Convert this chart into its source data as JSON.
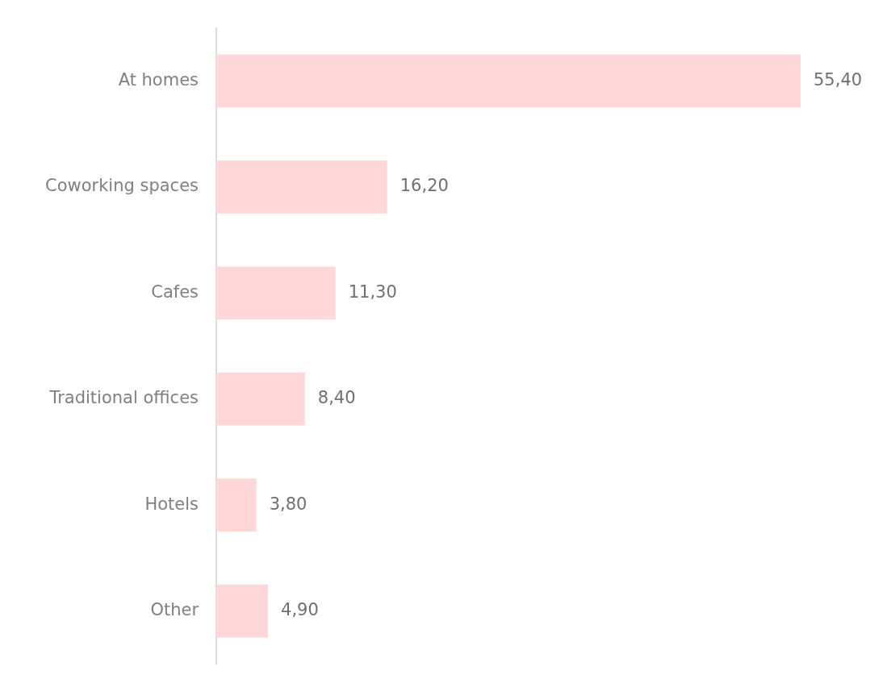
{
  "chart_data": {
    "type": "bar",
    "orientation": "horizontal",
    "categories": [
      "At homes",
      "Coworking spaces",
      "Cafes",
      "Traditional offices",
      "Hotels",
      "Other"
    ],
    "values": [
      55.4,
      16.2,
      11.3,
      8.4,
      3.8,
      4.9
    ],
    "value_labels": [
      "55,40",
      "16,20",
      "11,30",
      "8,40",
      "3,80",
      "4,90"
    ],
    "color": "#ffd7d8",
    "legend": false,
    "tick_labels": "y"
  }
}
